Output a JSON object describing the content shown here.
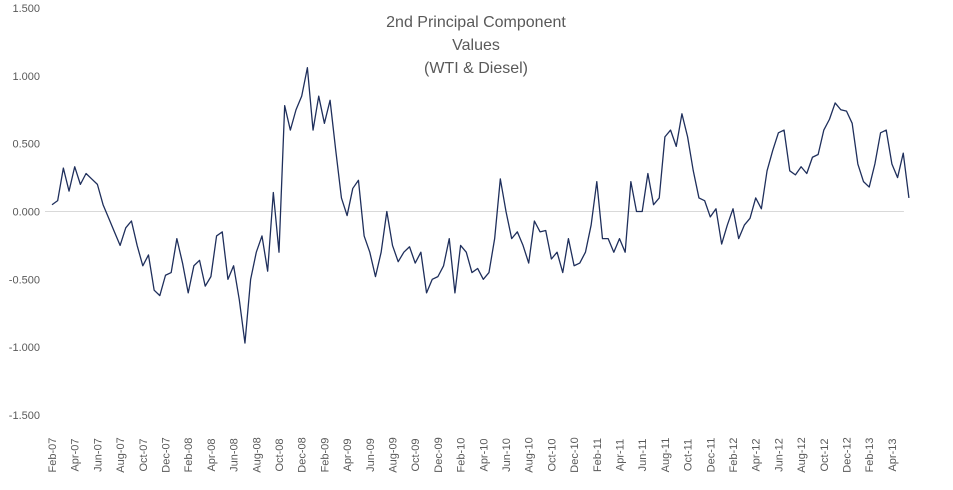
{
  "chart_data": {
    "type": "line",
    "title": [
      "2nd Principal Component",
      "Values",
      "(WTI & Diesel)"
    ],
    "categories": [
      "Feb-07",
      null,
      null,
      null,
      "Apr-07",
      null,
      null,
      null,
      "Jun-07",
      null,
      null,
      null,
      "Aug-07",
      null,
      null,
      null,
      "Oct-07",
      null,
      null,
      null,
      "Dec-07",
      null,
      null,
      null,
      "Feb-08",
      null,
      null,
      null,
      "Apr-08",
      null,
      null,
      null,
      "Jun-08",
      null,
      null,
      null,
      "Aug-08",
      null,
      null,
      null,
      "Oct-08",
      null,
      null,
      null,
      "Dec-08",
      null,
      null,
      null,
      "Feb-09",
      null,
      null,
      null,
      "Apr-09",
      null,
      null,
      null,
      "Jun-09",
      null,
      null,
      null,
      "Aug-09",
      null,
      null,
      null,
      "Oct-09",
      null,
      null,
      null,
      "Dec-09",
      null,
      null,
      null,
      "Feb-10",
      null,
      null,
      null,
      "Apr-10",
      null,
      null,
      null,
      "Jun-10",
      null,
      null,
      null,
      "Aug-10",
      null,
      null,
      null,
      "Oct-10",
      null,
      null,
      null,
      "Dec-10",
      null,
      null,
      null,
      "Feb-11",
      null,
      null,
      null,
      "Apr-11",
      null,
      null,
      null,
      "Jun-11",
      null,
      null,
      null,
      "Aug-11",
      null,
      null,
      null,
      "Oct-11",
      null,
      null,
      null,
      "Dec-11",
      null,
      null,
      null,
      "Feb-12",
      null,
      null,
      null,
      "Apr-12",
      null,
      null,
      null,
      "Jun-12",
      null,
      null,
      null,
      "Aug-12",
      null,
      null,
      null,
      "Oct-12",
      null,
      null,
      null,
      "Dec-12",
      null,
      null,
      null,
      "Feb-13",
      null,
      null,
      null,
      "Apr-13",
      null,
      null,
      null
    ],
    "series": [
      {
        "color": "#1f2f5c",
        "values": [
          0.05,
          0.08,
          0.32,
          0.15,
          0.33,
          0.2,
          0.28,
          0.24,
          0.2,
          0.05,
          -0.05,
          -0.15,
          -0.25,
          -0.12,
          -0.07,
          -0.25,
          -0.4,
          -0.32,
          -0.58,
          -0.62,
          -0.47,
          -0.45,
          -0.2,
          -0.38,
          -0.6,
          -0.4,
          -0.36,
          -0.55,
          -0.48,
          -0.18,
          -0.15,
          -0.5,
          -0.4,
          -0.65,
          -0.97,
          -0.5,
          -0.3,
          -0.18,
          -0.44,
          0.14,
          -0.3,
          0.78,
          0.6,
          0.75,
          0.85,
          1.06,
          0.6,
          0.85,
          0.65,
          0.82,
          0.45,
          0.1,
          -0.03,
          0.17,
          0.23,
          -0.18,
          -0.3,
          -0.48,
          -0.3,
          0.0,
          -0.25,
          -0.37,
          -0.3,
          -0.26,
          -0.38,
          -0.3,
          -0.6,
          -0.5,
          -0.48,
          -0.4,
          -0.2,
          -0.6,
          -0.25,
          -0.3,
          -0.45,
          -0.42,
          -0.5,
          -0.45,
          -0.2,
          0.24,
          0.0,
          -0.2,
          -0.15,
          -0.25,
          -0.38,
          -0.07,
          -0.15,
          -0.14,
          -0.35,
          -0.3,
          -0.45,
          -0.2,
          -0.4,
          -0.38,
          -0.3,
          -0.1,
          0.22,
          -0.2,
          -0.2,
          -0.3,
          -0.2,
          -0.3,
          0.22,
          0.0,
          0.0,
          0.28,
          0.05,
          0.1,
          0.55,
          0.6,
          0.48,
          0.72,
          0.55,
          0.3,
          0.1,
          0.08,
          -0.04,
          0.02,
          -0.24,
          -0.1,
          0.02,
          -0.2,
          -0.1,
          -0.05,
          0.1,
          0.02,
          0.3,
          0.45,
          0.58,
          0.6,
          0.3,
          0.27,
          0.33,
          0.28,
          0.4,
          0.42,
          0.6,
          0.68,
          0.8,
          0.75,
          0.74,
          0.65,
          0.35,
          0.22,
          0.18,
          0.35,
          0.58,
          0.6,
          0.35,
          0.25,
          0.43,
          0.1
        ]
      }
    ],
    "ylim": [
      -1.5,
      1.5
    ],
    "yticks": [
      {
        "value": -1.5,
        "label": "-1.500"
      },
      {
        "value": -1,
        "label": "-1.000"
      },
      {
        "value": -0.5,
        "label": "-0.500"
      },
      {
        "value": 0,
        "label": "0.000"
      },
      {
        "value": 0.5,
        "label": "0.500"
      },
      {
        "value": 1,
        "label": "1.000"
      },
      {
        "value": 1.5,
        "label": "1.500"
      }
    ],
    "grid": false
  }
}
